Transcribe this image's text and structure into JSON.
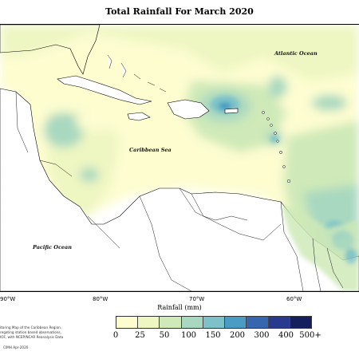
{
  "title": "Total Rainfall For March 2020",
  "labels": {
    "atlantic": "Atlantic Ocean",
    "caribbean": "Caribbean Sea",
    "pacific": "Pacific Ocean"
  },
  "longitudes": [
    "90°W",
    "80°W",
    "70°W",
    "60°W"
  ],
  "colorbar": {
    "title": "Rainfall (mm)",
    "ticks": [
      "0",
      "25",
      "50",
      "100",
      "150",
      "200",
      "300",
      "400",
      "500+"
    ],
    "colors": [
      "#fdfdd0",
      "#eef6c2",
      "#cfe9b8",
      "#a8d8c0",
      "#7dc2c8",
      "#4a9cc4",
      "#3566ae",
      "#283a8e",
      "#141f5e"
    ]
  },
  "footnote": [
    "itoring Map of the Caribbean Region.",
    "regating station based observations,",
    "IOF, with NCEP/NCAR Reanalysis Data"
  ],
  "copyright": "CIMH Apr-2020"
}
